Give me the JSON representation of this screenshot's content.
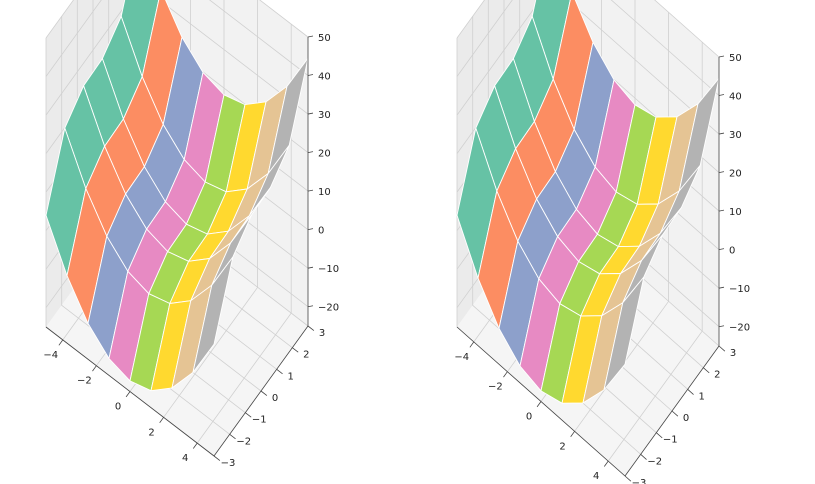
{
  "chart_data": [
    {
      "type": "surface3d",
      "title": "",
      "x_ticks": [
        "−4",
        "−2",
        "0",
        "2",
        "4"
      ],
      "y_ticks": [
        "−3",
        "−2",
        "−1",
        "0",
        "1",
        "2",
        "3"
      ],
      "z_ticks": [
        "−20",
        "−10",
        "0",
        "10",
        "20",
        "30",
        "40",
        "50"
      ],
      "xlim": [
        -5,
        5
      ],
      "ylim": [
        -3,
        3
      ],
      "zlim": [
        -25,
        50
      ],
      "colormap": "Set2",
      "strip_colors": [
        "#66c2a5",
        "#fc8d62",
        "#8da0cb",
        "#e78ac3",
        "#a6d854",
        "#ffd92f",
        "#e5c494",
        "#b3b3b3"
      ]
    },
    {
      "type": "surface3d",
      "title": "",
      "x_ticks": [
        "−4",
        "−2",
        "0",
        "2",
        "4"
      ],
      "y_ticks": [
        "−3",
        "−2",
        "−1",
        "0",
        "1",
        "2",
        "3"
      ],
      "z_ticks": [
        "−20",
        "−10",
        "0",
        "10",
        "20",
        "30",
        "40",
        "50"
      ],
      "xlim": [
        -5,
        5
      ],
      "ylim": [
        -3,
        3
      ],
      "zlim": [
        -25,
        50
      ],
      "colormap": "Set2",
      "strip_colors": [
        "#66c2a5",
        "#fc8d62",
        "#8da0cb",
        "#e78ac3",
        "#a6d854",
        "#ffd92f",
        "#e5c494",
        "#b3b3b3"
      ]
    }
  ]
}
